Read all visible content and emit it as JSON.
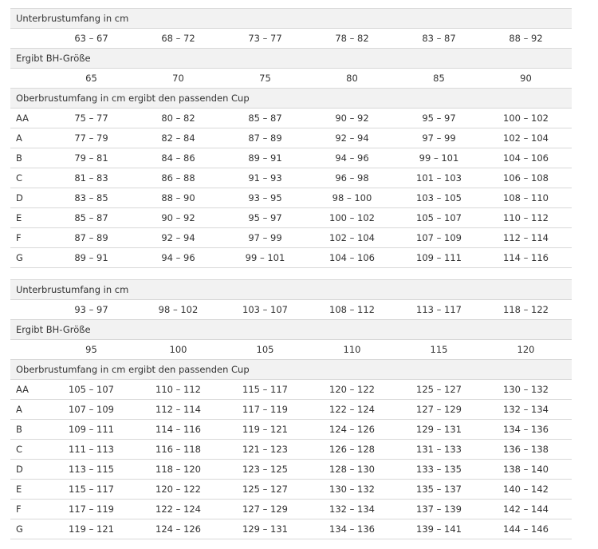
{
  "tables": [
    {
      "underbust": {
        "label": "Unterbrustumfang in cm",
        "values": [
          "63 – 67",
          "68 – 72",
          "73 – 77",
          "78 – 82",
          "83 – 87",
          "88 – 92"
        ]
      },
      "size": {
        "label": "Ergibt BH-Größe",
        "values": [
          "65",
          "70",
          "75",
          "80",
          "85",
          "90"
        ]
      },
      "cups": {
        "label": "Oberbrustumfang in cm ergibt den passenden Cup",
        "rows": [
          {
            "cup": "AA",
            "values": [
              "75 – 77",
              "80 – 82",
              "85 – 87",
              "90 – 92",
              "95 – 97",
              "100 – 102"
            ]
          },
          {
            "cup": "A",
            "values": [
              "77 – 79",
              "82 – 84",
              "87 – 89",
              "92 – 94",
              "97 – 99",
              "102 – 104"
            ]
          },
          {
            "cup": "B",
            "values": [
              "79 – 81",
              "84 – 86",
              "89 – 91",
              "94 – 96",
              "99 – 101",
              "104 – 106"
            ]
          },
          {
            "cup": "C",
            "values": [
              "81 – 83",
              "86 – 88",
              "91 – 93",
              "96 – 98",
              "101 – 103",
              "106 – 108"
            ]
          },
          {
            "cup": "D",
            "values": [
              "83 – 85",
              "88 – 90",
              "93 – 95",
              "98 – 100",
              "103 – 105",
              "108 – 110"
            ]
          },
          {
            "cup": "E",
            "values": [
              "85 – 87",
              "90 – 92",
              "95 – 97",
              "100 – 102",
              "105 – 107",
              "110 – 112"
            ]
          },
          {
            "cup": "F",
            "values": [
              "87 – 89",
              "92 – 94",
              "97 – 99",
              "102 – 104",
              "107 – 109",
              "112 – 114"
            ]
          },
          {
            "cup": "G",
            "values": [
              "89 – 91",
              "94 – 96",
              "99 – 101",
              "104 – 106",
              "109 – 111",
              "114 – 116"
            ]
          }
        ]
      }
    },
    {
      "underbust": {
        "label": "Unterbrustumfang in cm",
        "values": [
          "93 – 97",
          "98 – 102",
          "103 – 107",
          "108 – 112",
          "113 – 117",
          "118 – 122"
        ]
      },
      "size": {
        "label": "Ergibt BH-Größe",
        "values": [
          "95",
          "100",
          "105",
          "110",
          "115",
          "120"
        ]
      },
      "cups": {
        "label": "Oberbrustumfang in cm ergibt den passenden Cup",
        "rows": [
          {
            "cup": "AA",
            "values": [
              "105 – 107",
              "110 – 112",
              "115 – 117",
              "120 – 122",
              "125 – 127",
              "130 – 132"
            ]
          },
          {
            "cup": "A",
            "values": [
              "107 – 109",
              "112 – 114",
              "117 – 119",
              "122 – 124",
              "127 – 129",
              "132 – 134"
            ]
          },
          {
            "cup": "B",
            "values": [
              "109 – 111",
              "114 – 116",
              "119 – 121",
              "124 – 126",
              "129 – 131",
              "134 – 136"
            ]
          },
          {
            "cup": "C",
            "values": [
              "111 – 113",
              "116 – 118",
              "121 – 123",
              "126 – 128",
              "131 – 133",
              "136 – 138"
            ]
          },
          {
            "cup": "D",
            "values": [
              "113 – 115",
              "118 – 120",
              "123 – 125",
              "128 – 130",
              "133 – 135",
              "138 – 140"
            ]
          },
          {
            "cup": "E",
            "values": [
              "115 – 117",
              "120 – 122",
              "125 – 127",
              "130 – 132",
              "135 – 137",
              "140 – 142"
            ]
          },
          {
            "cup": "F",
            "values": [
              "117 – 119",
              "122 – 124",
              "127 – 129",
              "132 – 134",
              "137 – 139",
              "142 – 144"
            ]
          },
          {
            "cup": "G",
            "values": [
              "119 – 121",
              "124 – 126",
              "129 – 131",
              "134 – 136",
              "139 – 141",
              "144 – 146"
            ]
          }
        ]
      }
    }
  ]
}
